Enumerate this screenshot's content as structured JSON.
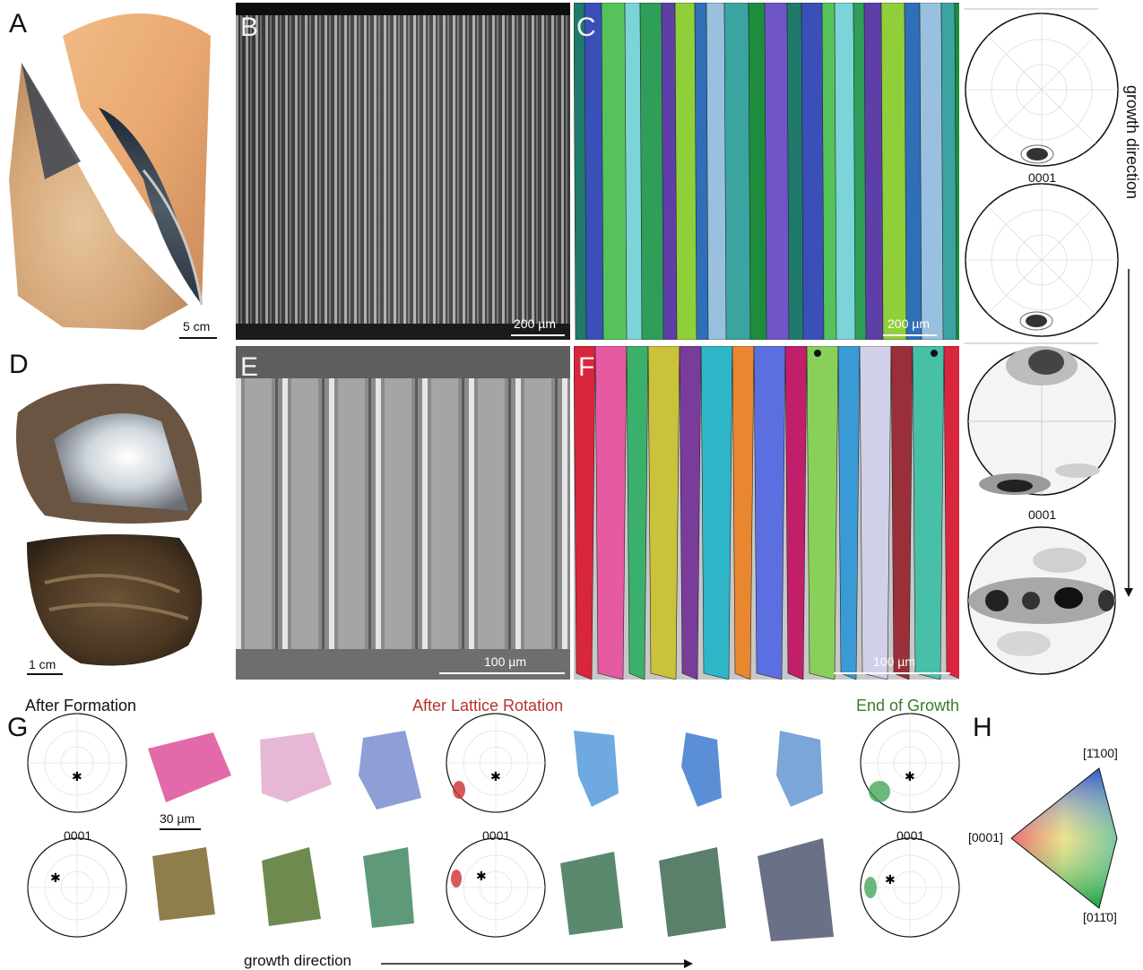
{
  "panels": {
    "a": {
      "letter": "A",
      "scale": "5 cm"
    },
    "b": {
      "letter": "B",
      "scale": "200 µm"
    },
    "c": {
      "letter": "C",
      "scale": "200 µm"
    },
    "d": {
      "letter": "D",
      "scale": "1 cm"
    },
    "e": {
      "letter": "E",
      "scale": "100 µm"
    },
    "f": {
      "letter": "F",
      "scale": "100 µm"
    },
    "g": {
      "letter": "G",
      "scale": "30 µm"
    },
    "h": {
      "letter": "H"
    }
  },
  "pole_figure_labels": {
    "c_top": "0001",
    "f_top": "0001"
  },
  "right_side_label": "growth direction",
  "g_section": {
    "stages": [
      {
        "label": "After Formation",
        "color": "#111111"
      },
      {
        "label": "After Lattice Rotation",
        "color": "#b8322c"
      },
      {
        "label": "End of Growth",
        "color": "#3a7a2e"
      }
    ],
    "pole_labels": [
      "0001",
      "0001",
      "0001"
    ],
    "bottom_label": "growth direction"
  },
  "key": {
    "top": "[1̄100]",
    "left": "[0001]",
    "bottom": "[011̄0]"
  },
  "colors": {
    "red_pole": "#d03030",
    "green_pole": "#3aa050"
  }
}
